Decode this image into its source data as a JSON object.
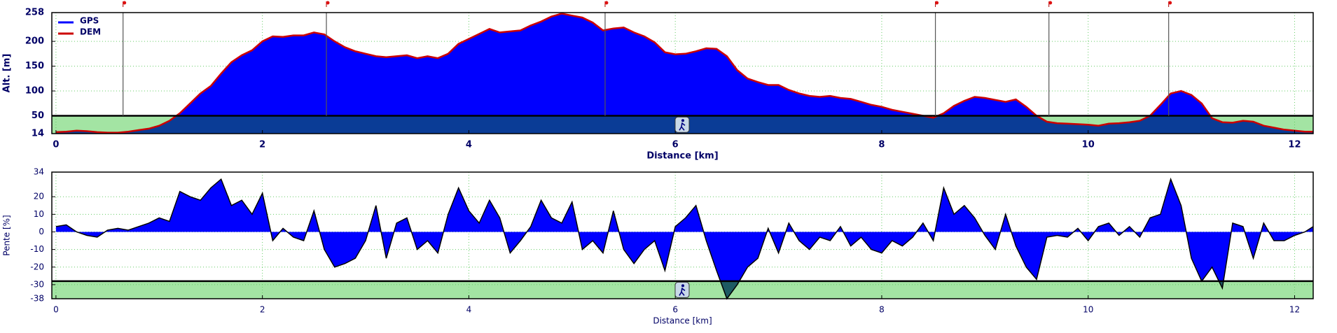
{
  "chart_data": [
    {
      "type": "area",
      "xlabel": "Distance [km]",
      "ylabel": "Alt. [m]",
      "x": [
        0,
        0.1,
        0.2,
        0.3,
        0.4,
        0.5,
        0.6,
        0.7,
        0.8,
        0.9,
        1,
        1.1,
        1.2,
        1.3,
        1.4,
        1.5,
        1.6,
        1.7,
        1.8,
        1.9,
        2,
        2.1,
        2.2,
        2.3,
        2.4,
        2.5,
        2.6,
        2.7,
        2.8,
        2.9,
        3,
        3.1,
        3.2,
        3.3,
        3.4,
        3.5,
        3.6,
        3.7,
        3.8,
        3.9,
        4,
        4.1,
        4.2,
        4.3,
        4.4,
        4.5,
        4.6,
        4.7,
        4.8,
        4.9,
        5,
        5.1,
        5.2,
        5.3,
        5.4,
        5.5,
        5.6,
        5.7,
        5.8,
        5.9,
        6,
        6.1,
        6.2,
        6.3,
        6.4,
        6.5,
        6.6,
        6.7,
        6.8,
        6.9,
        7,
        7.1,
        7.2,
        7.3,
        7.4,
        7.5,
        7.6,
        7.7,
        7.8,
        7.9,
        8,
        8.1,
        8.2,
        8.3,
        8.4,
        8.5,
        8.6,
        8.7,
        8.8,
        8.9,
        9,
        9.1,
        9.2,
        9.3,
        9.4,
        9.5,
        9.6,
        9.7,
        9.8,
        9.9,
        10,
        10.1,
        10.2,
        10.3,
        10.4,
        10.5,
        10.6,
        10.7,
        10.8,
        10.9,
        11,
        11.1,
        11.2,
        11.3,
        11.4,
        11.5,
        11.6,
        11.7,
        11.8,
        11.9,
        12,
        12.1,
        12.18
      ],
      "series": [
        {
          "name": "GPS",
          "color": "#0000ff",
          "values": [
            17,
            18,
            20,
            19,
            17,
            16,
            16,
            18,
            21,
            24,
            30,
            40,
            55,
            75,
            95,
            110,
            135,
            158,
            172,
            182,
            200,
            210,
            209,
            212,
            212,
            218,
            214,
            200,
            188,
            180,
            175,
            170,
            168,
            170,
            172,
            166,
            170,
            166,
            175,
            195,
            205,
            215,
            225,
            218,
            220,
            222,
            232,
            240,
            250,
            256,
            252,
            248,
            238,
            222,
            226,
            228,
            218,
            210,
            198,
            178,
            174,
            175,
            180,
            186,
            185,
            170,
            142,
            125,
            118,
            112,
            112,
            102,
            95,
            90,
            88,
            90,
            86,
            84,
            78,
            72,
            68,
            62,
            58,
            54,
            50,
            46,
            55,
            70,
            80,
            88,
            86,
            82,
            78,
            83,
            68,
            50,
            38,
            35,
            34,
            33,
            32,
            30,
            34,
            35,
            37,
            40,
            50,
            72,
            95,
            100,
            92,
            75,
            45,
            37,
            36,
            40,
            38,
            30,
            26,
            22,
            20,
            18,
            18
          ]
        },
        {
          "name": "DEM",
          "color": "#cc0000",
          "values": [
            17,
            18,
            20,
            19,
            17,
            16,
            16,
            18,
            21,
            24,
            30,
            40,
            55,
            75,
            95,
            110,
            135,
            158,
            172,
            182,
            200,
            210,
            209,
            212,
            212,
            218,
            214,
            200,
            188,
            180,
            175,
            170,
            168,
            170,
            172,
            166,
            170,
            166,
            175,
            195,
            205,
            215,
            225,
            218,
            220,
            222,
            232,
            240,
            250,
            256,
            252,
            248,
            238,
            222,
            226,
            228,
            218,
            210,
            198,
            178,
            174,
            175,
            180,
            186,
            185,
            170,
            142,
            125,
            118,
            112,
            112,
            102,
            95,
            90,
            88,
            90,
            86,
            84,
            78,
            72,
            68,
            62,
            58,
            54,
            50,
            46,
            55,
            70,
            80,
            88,
            86,
            82,
            78,
            83,
            68,
            50,
            38,
            35,
            34,
            33,
            32,
            30,
            34,
            35,
            37,
            40,
            50,
            72,
            95,
            100,
            92,
            75,
            45,
            37,
            36,
            40,
            38,
            30,
            26,
            22,
            20,
            18,
            18
          ]
        }
      ],
      "xlim": [
        -0.04,
        12.18
      ],
      "ylim": [
        14,
        258
      ],
      "xticks": [
        0,
        2,
        4,
        6,
        8,
        10,
        12
      ],
      "yticks": [
        14,
        50,
        100,
        150,
        200,
        258
      ],
      "grid": true,
      "legend": "upper left",
      "band": {
        "from": 14,
        "to": 50,
        "color": "#a3e4a3"
      },
      "markers": [
        0.65,
        2.62,
        5.32,
        8.52,
        9.62,
        10.78
      ]
    },
    {
      "type": "area",
      "xlabel": "Distance [km]",
      "ylabel": "Pente [%]",
      "x": [
        0,
        0.1,
        0.2,
        0.3,
        0.4,
        0.5,
        0.6,
        0.7,
        0.8,
        0.9,
        1,
        1.1,
        1.2,
        1.3,
        1.4,
        1.5,
        1.6,
        1.7,
        1.8,
        1.9,
        2,
        2.1,
        2.2,
        2.3,
        2.4,
        2.5,
        2.6,
        2.7,
        2.8,
        2.9,
        3,
        3.1,
        3.2,
        3.3,
        3.4,
        3.5,
        3.6,
        3.7,
        3.8,
        3.9,
        4,
        4.1,
        4.2,
        4.3,
        4.4,
        4.5,
        4.6,
        4.7,
        4.8,
        4.9,
        5,
        5.1,
        5.2,
        5.3,
        5.4,
        5.5,
        5.6,
        5.7,
        5.8,
        5.9,
        6,
        6.1,
        6.2,
        6.3,
        6.4,
        6.5,
        6.6,
        6.7,
        6.8,
        6.9,
        7,
        7.1,
        7.2,
        7.3,
        7.4,
        7.5,
        7.6,
        7.7,
        7.8,
        7.9,
        8,
        8.1,
        8.2,
        8.3,
        8.4,
        8.5,
        8.6,
        8.7,
        8.8,
        8.9,
        9,
        9.1,
        9.2,
        9.3,
        9.4,
        9.5,
        9.6,
        9.7,
        9.8,
        9.9,
        10,
        10.1,
        10.2,
        10.3,
        10.4,
        10.5,
        10.6,
        10.7,
        10.8,
        10.9,
        11,
        11.1,
        11.2,
        11.3,
        11.4,
        11.5,
        11.6,
        11.7,
        11.8,
        11.9,
        12,
        12.1,
        12.18
      ],
      "color": "#0000ff",
      "values": [
        3,
        4,
        0,
        -2,
        -3,
        1,
        2,
        1,
        3,
        5,
        8,
        6,
        23,
        20,
        18,
        25,
        30,
        15,
        18,
        10,
        22,
        -5,
        2,
        -3,
        -5,
        12,
        -10,
        -20,
        -18,
        -15,
        -5,
        15,
        -15,
        5,
        8,
        -10,
        -5,
        -12,
        10,
        25,
        12,
        5,
        18,
        8,
        -12,
        -5,
        3,
        18,
        8,
        5,
        17,
        -10,
        -5,
        -12,
        12,
        -10,
        -18,
        -10,
        -5,
        -22,
        3,
        8,
        15,
        -5,
        -22,
        -38,
        -30,
        -20,
        -15,
        2,
        -12,
        5,
        -5,
        -10,
        -3,
        -5,
        3,
        -8,
        -3,
        -10,
        -12,
        -5,
        -8,
        -3,
        5,
        -5,
        25,
        10,
        15,
        8,
        -2,
        -10,
        10,
        -8,
        -20,
        -27,
        -3,
        -2,
        -3,
        2,
        -5,
        3,
        5,
        -2,
        3,
        -3,
        8,
        10,
        30,
        15,
        -15,
        -28,
        -20,
        -32,
        5,
        3,
        -15,
        5,
        -5,
        -5,
        -2,
        0,
        3
      ],
      "xlim": [
        -0.04,
        12.18
      ],
      "ylim": [
        -38,
        34
      ],
      "xticks": [
        0,
        2,
        4,
        6,
        8,
        10,
        12
      ],
      "yticks": [
        -38,
        -30,
        -20,
        -10,
        0,
        10,
        20,
        34
      ],
      "grid": true,
      "band": {
        "from": -38,
        "to": -28,
        "color": "#a3e4a3"
      }
    }
  ]
}
